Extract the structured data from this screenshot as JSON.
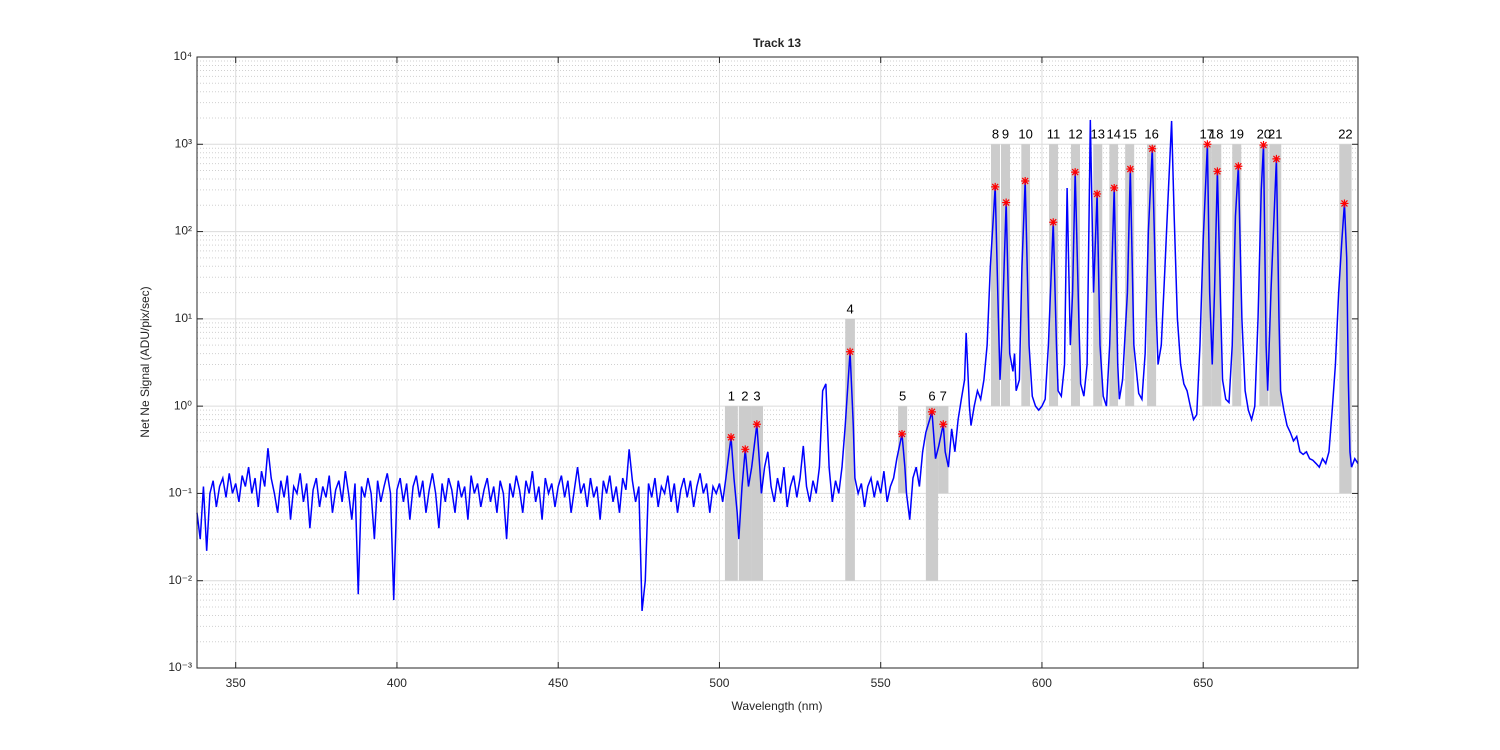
{
  "chart_data": {
    "type": "line",
    "title": "Track 13",
    "xlabel": "Wavelength (nm)",
    "ylabel": "Net Ne Signal (ADU/pix/sec)",
    "xlim": [
      338,
      698
    ],
    "xticks": [
      350,
      400,
      450,
      500,
      550,
      600,
      650
    ],
    "ylim": [
      0.001,
      10000
    ],
    "yscale": "log",
    "yticks": [
      {
        "value": 0.001,
        "label": "10⁻³"
      },
      {
        "value": 0.01,
        "label": "10⁻²"
      },
      {
        "value": 0.1,
        "label": "10⁻¹"
      },
      {
        "value": 1,
        "label": "10⁰"
      },
      {
        "value": 10,
        "label": "10¹"
      },
      {
        "value": 100,
        "label": "10²"
      },
      {
        "value": 1000,
        "label": "10³"
      },
      {
        "value": 10000,
        "label": "10⁴"
      }
    ],
    "yminorticks": [
      0.002,
      0.003,
      0.004,
      0.005,
      0.006,
      0.007,
      0.008,
      0.009,
      0.02,
      0.03,
      0.04,
      0.05,
      0.06,
      0.07,
      0.08,
      0.09,
      0.2,
      0.3,
      0.4,
      0.5,
      0.6,
      0.7,
      0.8,
      0.9,
      2,
      3,
      4,
      5,
      6,
      7,
      8,
      9,
      20,
      30,
      40,
      50,
      60,
      70,
      80,
      90,
      200,
      300,
      400,
      500,
      600,
      700,
      800,
      900,
      2000,
      3000,
      4000,
      5000,
      6000,
      7000,
      8000,
      9000
    ],
    "grid": true,
    "line": {
      "color": "#0000ff",
      "x": [
        338,
        339,
        340,
        341,
        342,
        343,
        344,
        345,
        346,
        347,
        348,
        349,
        350,
        351,
        352,
        353,
        354,
        355,
        356,
        357,
        358,
        359,
        360,
        361,
        362,
        363,
        364,
        365,
        366,
        367,
        368,
        369,
        370,
        371,
        372,
        373,
        374,
        375,
        376,
        377,
        378,
        379,
        380,
        381,
        382,
        383,
        384,
        385,
        386,
        387,
        388,
        389,
        390,
        391,
        392,
        393,
        394,
        395,
        396,
        397,
        398,
        399,
        400,
        401,
        402,
        403,
        404,
        405,
        406,
        407,
        408,
        409,
        410,
        411,
        412,
        413,
        414,
        415,
        416,
        417,
        418,
        419,
        420,
        421,
        422,
        423,
        424,
        425,
        426,
        427,
        428,
        429,
        430,
        431,
        432,
        433,
        434,
        435,
        436,
        437,
        438,
        439,
        440,
        441,
        442,
        443,
        444,
        445,
        446,
        447,
        448,
        449,
        450,
        451,
        452,
        453,
        454,
        455,
        456,
        457,
        458,
        459,
        460,
        461,
        462,
        463,
        464,
        465,
        466,
        467,
        468,
        469,
        470,
        471,
        472,
        473,
        474,
        475,
        476,
        477,
        478,
        479,
        480,
        481,
        482,
        483,
        484,
        485,
        486,
        487,
        488,
        489,
        490,
        491,
        492,
        493,
        494,
        495,
        496,
        497,
        498,
        499,
        500,
        501,
        502,
        503,
        503.6,
        504.5,
        505.5,
        506,
        507,
        508,
        509,
        510,
        511.6,
        512.5,
        513,
        514,
        515,
        516,
        517,
        518,
        519,
        520,
        521,
        522,
        523,
        524,
        525,
        526,
        527,
        528,
        529,
        530,
        531,
        532,
        533,
        534,
        535,
        536,
        537,
        538,
        539,
        540.5,
        541.5,
        542,
        543,
        544,
        545,
        546,
        547,
        548,
        549,
        550,
        551,
        552,
        553,
        554,
        555,
        556.6,
        557.5,
        558,
        559,
        560,
        561,
        562,
        563,
        564,
        565.9,
        567,
        568,
        569.4,
        570,
        571,
        572,
        573,
        574,
        575,
        576,
        576.5,
        577.5,
        578,
        579,
        580,
        581,
        582,
        583,
        584,
        585.5,
        586.5,
        587,
        587.5,
        588.9,
        590,
        591,
        591.5,
        592,
        593,
        593.8,
        594.8,
        596,
        597,
        598,
        599,
        600,
        601,
        602,
        603.5,
        604.5,
        605,
        606,
        607,
        607.8,
        608.8,
        609.5,
        610.3,
        611.5,
        612,
        613,
        614,
        615,
        616,
        617.1,
        618,
        619,
        620,
        621,
        622.4,
        623.5,
        624,
        625,
        626.5,
        627.4,
        628.5,
        630,
        631,
        632,
        633,
        634.2,
        635.5,
        636,
        637,
        638,
        639,
        640.2,
        641,
        642,
        643,
        644,
        645,
        646,
        647,
        648,
        649,
        650,
        651.3,
        652,
        652.8,
        653.5,
        654.4,
        655.5,
        656,
        657,
        658,
        659,
        660,
        660.9,
        662,
        663,
        664,
        665,
        666,
        667,
        668,
        668.7,
        669.5,
        670,
        671,
        672.7,
        673.5,
        674,
        675,
        676,
        677,
        678,
        679,
        680,
        681,
        682,
        683,
        684,
        685,
        686,
        687,
        688,
        689,
        690,
        691,
        692,
        693,
        693.8,
        694.5,
        695,
        695.5,
        696,
        697,
        698
      ],
      "y": [
        0.06,
        0.03,
        0.12,
        0.022,
        0.1,
        0.14,
        0.07,
        0.12,
        0.15,
        0.09,
        0.17,
        0.1,
        0.13,
        0.08,
        0.16,
        0.12,
        0.2,
        0.1,
        0.15,
        0.07,
        0.18,
        0.12,
        0.33,
        0.15,
        0.1,
        0.06,
        0.14,
        0.09,
        0.16,
        0.05,
        0.12,
        0.1,
        0.17,
        0.08,
        0.13,
        0.04,
        0.11,
        0.15,
        0.07,
        0.12,
        0.09,
        0.16,
        0.06,
        0.11,
        0.14,
        0.08,
        0.18,
        0.1,
        0.05,
        0.13,
        0.007,
        0.12,
        0.09,
        0.15,
        0.1,
        0.03,
        0.14,
        0.08,
        0.12,
        0.17,
        0.1,
        0.006,
        0.11,
        0.15,
        0.08,
        0.13,
        0.05,
        0.12,
        0.16,
        0.09,
        0.14,
        0.06,
        0.11,
        0.17,
        0.1,
        0.04,
        0.13,
        0.08,
        0.15,
        0.11,
        0.06,
        0.14,
        0.09,
        0.12,
        0.05,
        0.16,
        0.1,
        0.13,
        0.07,
        0.11,
        0.15,
        0.08,
        0.12,
        0.06,
        0.14,
        0.1,
        0.03,
        0.13,
        0.09,
        0.16,
        0.11,
        0.06,
        0.14,
        0.1,
        0.18,
        0.08,
        0.12,
        0.05,
        0.15,
        0.1,
        0.13,
        0.07,
        0.12,
        0.16,
        0.09,
        0.14,
        0.06,
        0.11,
        0.2,
        0.1,
        0.13,
        0.07,
        0.15,
        0.09,
        0.12,
        0.05,
        0.14,
        0.1,
        0.16,
        0.08,
        0.12,
        0.06,
        0.15,
        0.11,
        0.32,
        0.14,
        0.08,
        0.12,
        0.0045,
        0.01,
        0.13,
        0.09,
        0.15,
        0.07,
        0.12,
        0.1,
        0.16,
        0.08,
        0.13,
        0.06,
        0.11,
        0.15,
        0.09,
        0.14,
        0.07,
        0.12,
        0.17,
        0.1,
        0.13,
        0.06,
        0.12,
        0.1,
        0.13,
        0.08,
        0.15,
        0.3,
        0.44,
        0.15,
        0.06,
        0.03,
        0.12,
        0.32,
        0.12,
        0.2,
        0.62,
        0.2,
        0.1,
        0.2,
        0.3,
        0.12,
        0.08,
        0.15,
        0.1,
        0.2,
        0.07,
        0.12,
        0.16,
        0.09,
        0.15,
        0.35,
        0.12,
        0.08,
        0.14,
        0.1,
        0.2,
        1.5,
        1.8,
        0.2,
        0.08,
        0.14,
        0.1,
        0.2,
        0.6,
        4.2,
        0.6,
        0.15,
        0.1,
        0.13,
        0.07,
        0.12,
        0.15,
        0.09,
        0.14,
        0.1,
        0.18,
        0.08,
        0.12,
        0.15,
        0.25,
        0.48,
        0.2,
        0.1,
        0.05,
        0.15,
        0.2,
        0.12,
        0.3,
        0.5,
        0.86,
        0.25,
        0.35,
        0.62,
        0.3,
        0.2,
        0.55,
        0.3,
        0.7,
        1.2,
        2,
        6.9,
        1,
        0.6,
        1,
        1.5,
        1.2,
        2,
        5,
        40,
        325,
        10,
        2,
        5,
        215,
        4,
        2.5,
        4,
        1.5,
        2,
        40,
        380,
        5,
        1.3,
        1,
        0.9,
        1,
        1.2,
        5,
        128,
        5,
        1.5,
        1.3,
        3,
        316,
        5,
        20,
        480,
        8,
        1.8,
        1.3,
        3,
        1900,
        20,
        270,
        5,
        1.3,
        1,
        5,
        316,
        3,
        1.2,
        2,
        20,
        520,
        5,
        1.4,
        1.2,
        4,
        100,
        890,
        10,
        3,
        5,
        30,
        200,
        1850,
        150,
        10,
        3,
        1.8,
        1.5,
        1,
        0.7,
        0.8,
        5,
        80,
        1000,
        20,
        3,
        20,
        490,
        10,
        2,
        1.2,
        1.1,
        5,
        150,
        560,
        10,
        1.5,
        0.9,
        0.7,
        1,
        10,
        300,
        980,
        5,
        1.5,
        20,
        680,
        10,
        1.5,
        0.9,
        0.6,
        0.5,
        0.4,
        0.45,
        0.3,
        0.28,
        0.3,
        0.25,
        0.24,
        0.22,
        0.2,
        0.25,
        0.22,
        0.3,
        0.9,
        3,
        20,
        80,
        210,
        50,
        2,
        0.3,
        0.2,
        0.25,
        0.22
      ]
    },
    "peaks": {
      "color": "#ff0000",
      "x": [
        503.6,
        508,
        511.6,
        540.5,
        556.6,
        565.9,
        569.4,
        585.5,
        588.9,
        594.8,
        603.5,
        610.3,
        617.1,
        622.4,
        627.4,
        634.2,
        651.3,
        654.4,
        660.9,
        668.7,
        672.7,
        693.8
      ],
      "y": [
        0.44,
        0.32,
        0.62,
        4.2,
        0.48,
        0.86,
        0.62,
        325,
        215,
        380,
        128,
        480,
        270,
        316,
        520,
        890,
        1000,
        490,
        560,
        980,
        680,
        210
      ]
    },
    "bands": {
      "color": "#cccccc",
      "items": [
        {
          "label": "1",
          "x": [
            501.7,
            505.7
          ],
          "y": [
            0.01,
            1
          ]
        },
        {
          "label": "2",
          "x": [
            506,
            509.8
          ],
          "y": [
            0.01,
            1
          ]
        },
        {
          "label": "3",
          "x": [
            509.8,
            513.5
          ],
          "y": [
            0.01,
            1
          ]
        },
        {
          "label": "4",
          "x": [
            539,
            542
          ],
          "y": [
            0.01,
            10
          ]
        },
        {
          "label": "5",
          "x": [
            555.4,
            558.2
          ],
          "y": [
            0.1,
            1
          ]
        },
        {
          "label": "6",
          "x": [
            564,
            567.8
          ],
          "y": [
            0.01,
            1
          ]
        },
        {
          "label": "7",
          "x": [
            567.8,
            571
          ],
          "y": [
            0.1,
            1
          ]
        },
        {
          "label": "8",
          "x": [
            584.2,
            587
          ],
          "y": [
            1,
            1000
          ]
        },
        {
          "label": "9",
          "x": [
            587.3,
            590.1
          ],
          "y": [
            1,
            1000
          ]
        },
        {
          "label": "10",
          "x": [
            593.6,
            596.3
          ],
          "y": [
            1,
            1000
          ]
        },
        {
          "label": "11",
          "x": [
            602.2,
            605
          ],
          "y": [
            1,
            1000
          ]
        },
        {
          "label": "12",
          "x": [
            609,
            611.8
          ],
          "y": [
            1,
            1000
          ]
        },
        {
          "label": "13",
          "x": [
            615.9,
            618.7
          ],
          "y": [
            1,
            1000
          ]
        },
        {
          "label": "14",
          "x": [
            620.9,
            623.6
          ],
          "y": [
            1,
            1000
          ]
        },
        {
          "label": "15",
          "x": [
            625.8,
            628.6
          ],
          "y": [
            1,
            1000
          ]
        },
        {
          "label": "16",
          "x": [
            632.6,
            635.4
          ],
          "y": [
            1,
            1000
          ]
        },
        {
          "label": "17",
          "x": [
            649.7,
            652.5
          ],
          "y": [
            1,
            1000
          ]
        },
        {
          "label": "18",
          "x": [
            652.5,
            655.6
          ],
          "y": [
            1,
            1000
          ]
        },
        {
          "label": "19",
          "x": [
            659,
            661.8
          ],
          "y": [
            1,
            1000
          ]
        },
        {
          "label": "20",
          "x": [
            667.4,
            670.2
          ],
          "y": [
            1,
            1000
          ]
        },
        {
          "label": "21",
          "x": [
            670.5,
            674.2
          ],
          "y": [
            1,
            1000
          ]
        },
        {
          "label": "22",
          "x": [
            692.2,
            696
          ],
          "y": [
            0.1,
            1000
          ]
        }
      ]
    }
  }
}
